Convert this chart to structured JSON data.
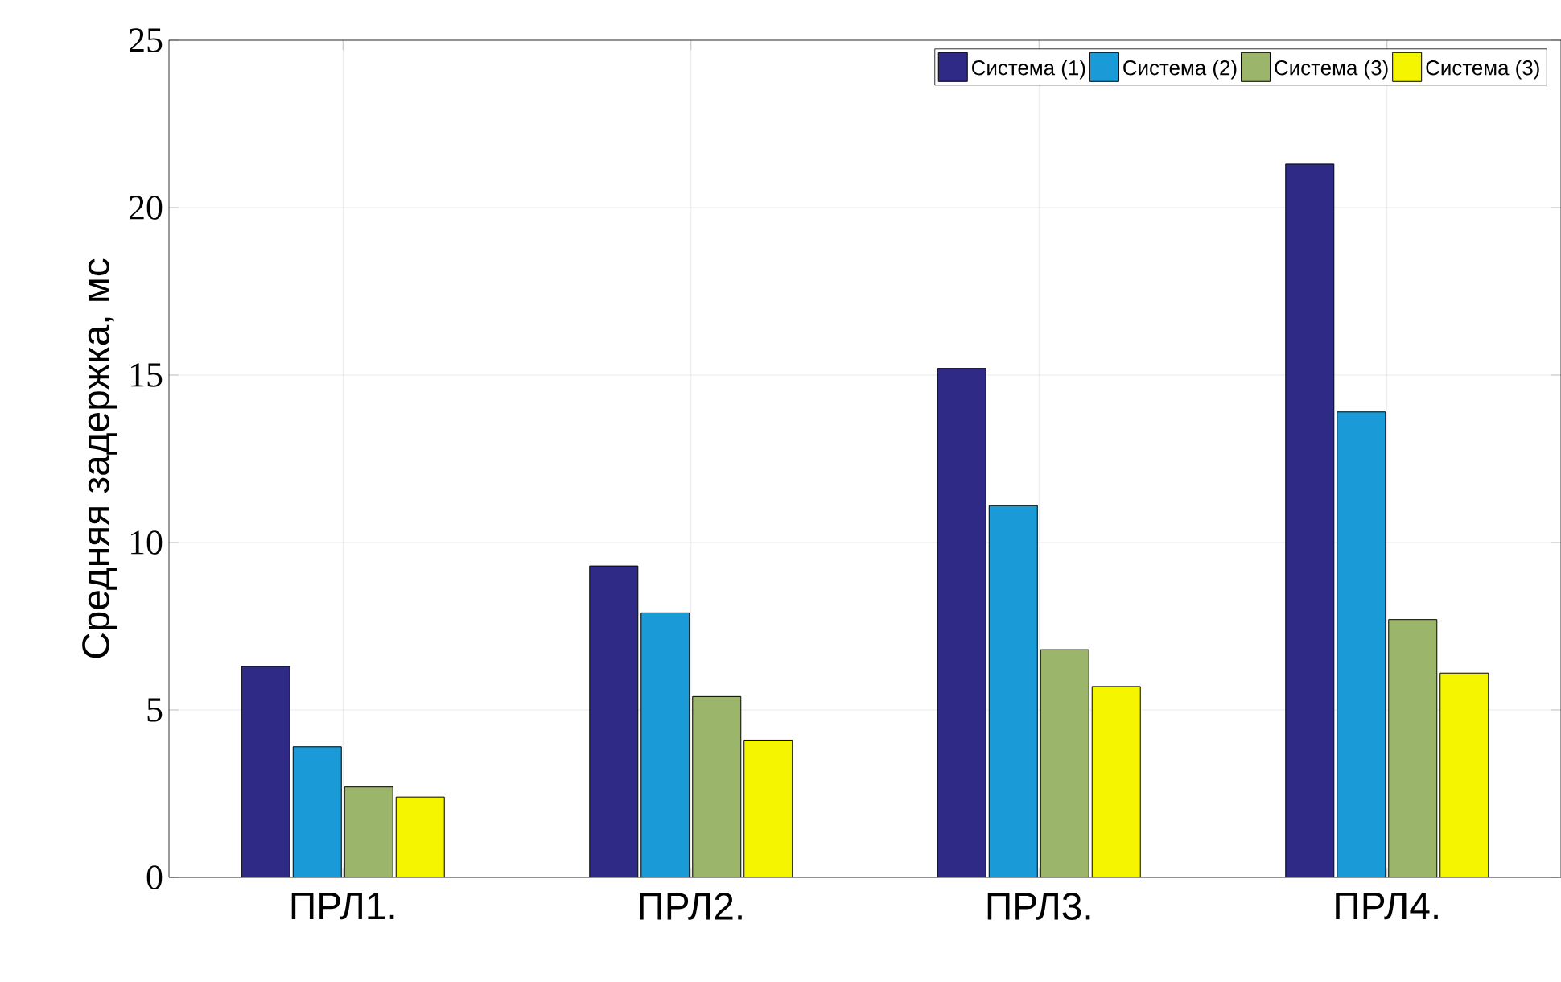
{
  "chart_data": {
    "type": "bar",
    "ylabel": "Средняя задержка, мс",
    "categories": [
      "ПРЛ1.",
      "ПРЛ2.",
      "ПРЛ3.",
      "ПРЛ4."
    ],
    "series": [
      {
        "name": "Система (1)",
        "color": "#2e2a86",
        "values": [
          6.3,
          9.3,
          15.2,
          21.3
        ]
      },
      {
        "name": "Система (2)",
        "color": "#1a9bd7",
        "values": [
          3.9,
          7.9,
          11.1,
          13.9
        ]
      },
      {
        "name": "Система (3)",
        "color": "#9bb56a",
        "values": [
          2.7,
          5.4,
          6.8,
          7.7
        ]
      },
      {
        "name": "Система (3)",
        "color": "#f5f500",
        "values": [
          2.4,
          4.1,
          5.7,
          6.1
        ]
      }
    ],
    "ylim": [
      0,
      25
    ],
    "yticks": [
      0,
      5,
      10,
      15,
      20,
      25
    ],
    "grid": true,
    "legend": "top right"
  }
}
